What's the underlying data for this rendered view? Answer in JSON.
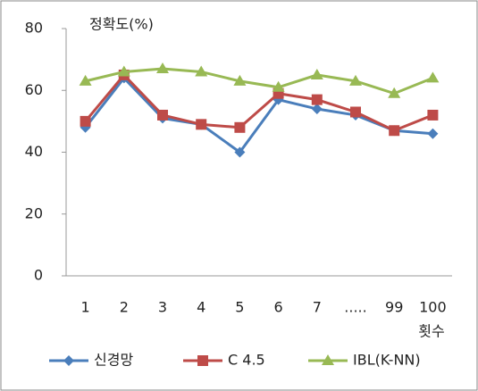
{
  "chart_data": {
    "type": "line",
    "y_label": "정확도(%)",
    "x_label": "횟수",
    "categories": [
      "1",
      "2",
      "3",
      "4",
      "5",
      "6",
      "7",
      ".....",
      "99",
      "100"
    ],
    "series": [
      {
        "name": "신경망",
        "color": "#4a7ebb",
        "marker": "diamond",
        "values": [
          48,
          64,
          51,
          49,
          40,
          57,
          54,
          52,
          47,
          46
        ]
      },
      {
        "name": "C 4.5",
        "color": "#be4b48",
        "marker": "square",
        "values": [
          50,
          65,
          52,
          49,
          48,
          59,
          57,
          53,
          47,
          52
        ]
      },
      {
        "name": "IBL(K-NN)",
        "color": "#98b954",
        "marker": "triangle",
        "values": [
          63,
          66,
          67,
          66,
          63,
          61,
          65,
          63,
          59,
          64
        ]
      }
    ],
    "ylim": [
      0,
      80
    ],
    "yticks": [
      0,
      20,
      40,
      60,
      80
    ],
    "grid": false
  }
}
